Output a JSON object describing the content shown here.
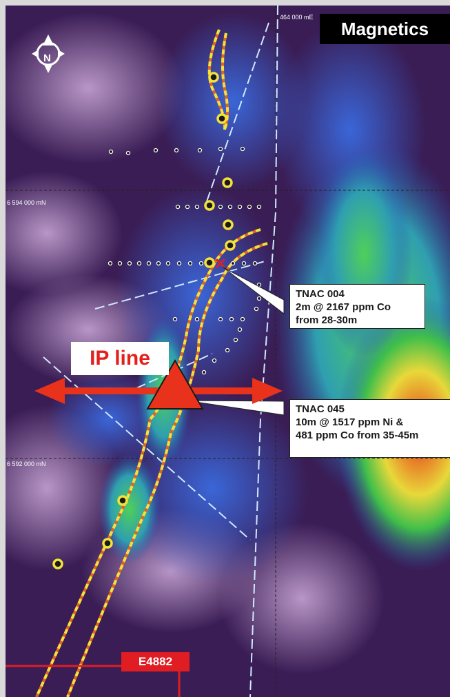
{
  "map": {
    "title": "Magnetics",
    "north_label": "N",
    "grid_easting_label": "464 000 mE",
    "grid_northing_labels": [
      "6 594 000 mN",
      "6 592 000 mN"
    ],
    "ip_line_label": "IP line",
    "tenement_label": "E4882",
    "callouts": [
      {
        "id": "TNAC 004",
        "lines": [
          "TNAC 004",
          "2m @ 2167 ppm Co",
          "from 28-30m"
        ]
      },
      {
        "id": "TNAC 045",
        "lines": [
          "TNAC 045",
          "10m @ 1517 ppm Ni &",
          "481 ppm Co from 35-45m"
        ]
      }
    ],
    "colors": {
      "background_low": "#3a1d55",
      "high_green": "#3fbf4a",
      "high_yellow": "#e8d83a",
      "high_red": "#d83a20",
      "arrow_red": "#e8321c",
      "trace_orange": "#e2632a",
      "trace_yellow": "#f2e23a",
      "tenement_red": "#e01d22"
    }
  }
}
